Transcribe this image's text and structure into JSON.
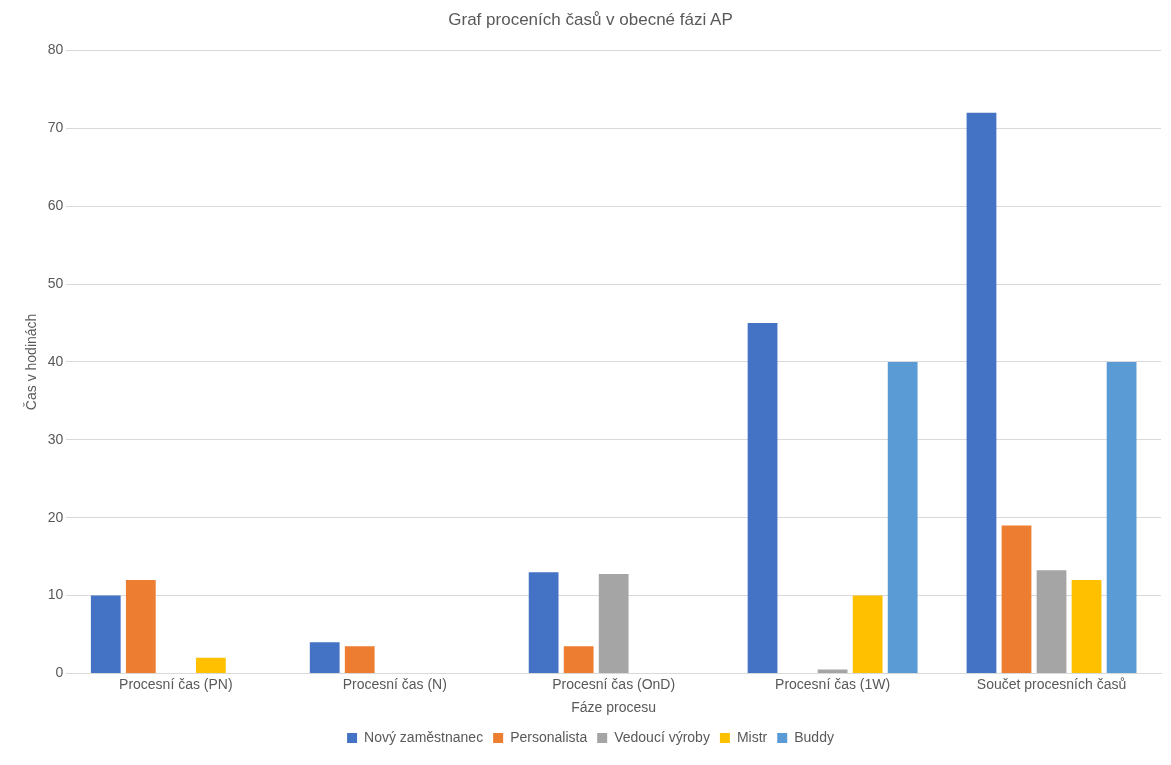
{
  "chart_data": {
    "type": "bar",
    "title": "Graf proceních časů v obecné fázi AP",
    "xlabel": "Fáze procesu",
    "ylabel": "Čas v hodinách",
    "categories": [
      "Procesní čas (PN)",
      "Procesní čas (N)",
      "Procesní čas (OnD)",
      "Procesní čas (1W)",
      "Součet procesních časů"
    ],
    "series": [
      {
        "name": "Nový zaměstnanec",
        "color": "#4472c4",
        "values": [
          10,
          4,
          13,
          45,
          72
        ]
      },
      {
        "name": "Personalista",
        "color": "#ed7d31",
        "values": [
          12,
          3.5,
          3.5,
          null,
          19
        ]
      },
      {
        "name": "Vedoucí výroby",
        "color": "#a5a5a5",
        "values": [
          null,
          null,
          12.75,
          0.5,
          13.25
        ]
      },
      {
        "name": "Mistr",
        "color": "#ffc000",
        "values": [
          2,
          null,
          null,
          10,
          12
        ]
      },
      {
        "name": "Buddy",
        "color": "#5b9bd5",
        "values": [
          null,
          null,
          null,
          40,
          40
        ]
      }
    ],
    "ylim": [
      0,
      80
    ],
    "yticks": [
      0,
      10,
      20,
      30,
      40,
      50,
      60,
      70,
      80
    ],
    "grid": "y",
    "legend": "bottom"
  }
}
